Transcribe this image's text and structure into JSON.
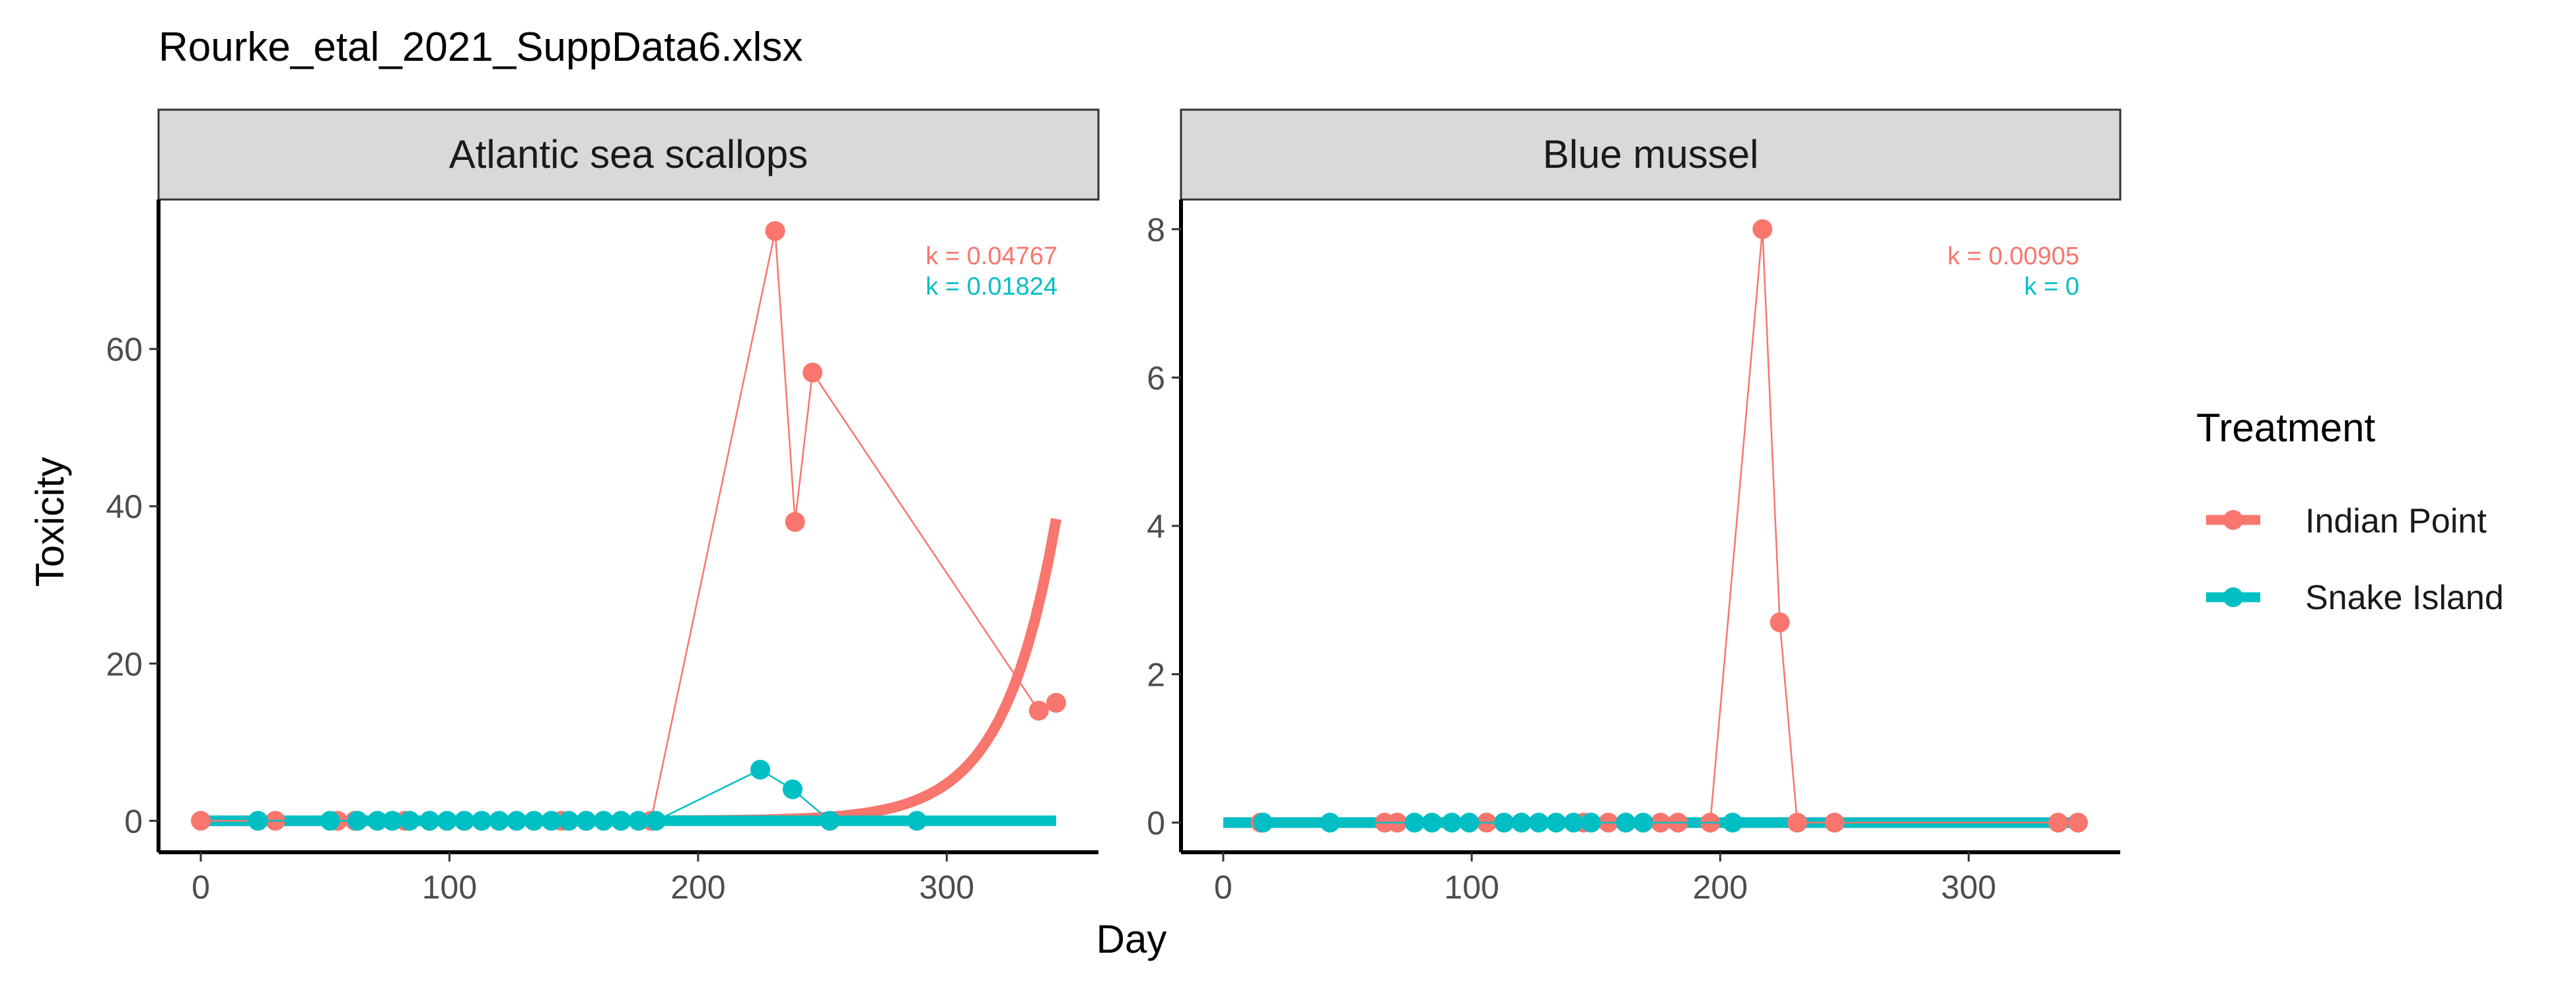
{
  "title": "Rourke_etal_2021_SuppData6.xlsx",
  "xlabel": "Day",
  "ylabel": "Toxicity",
  "legend": {
    "title": "Treatment",
    "placement": "right",
    "items": [
      {
        "label": "Indian Point",
        "color": "#F8766D"
      },
      {
        "label": "Snake Island",
        "color": "#00BFC4"
      }
    ]
  },
  "chart_data": [
    {
      "type": "scatter",
      "panel": "Atlantic sea scallops",
      "xlim": [
        -17,
        361
      ],
      "ylim": [
        -4,
        79
      ],
      "xticks": [
        0,
        100,
        200,
        300
      ],
      "yticks": [
        0,
        20,
        40,
        60
      ],
      "series": [
        {
          "name": "Indian Point",
          "color": "#F8766D",
          "k_label": "k = 0.04767",
          "k": 0.04767,
          "x": [
            0,
            30,
            55,
            62,
            82,
            106,
            145,
            155,
            181,
            231,
            239,
            246,
            337,
            344
          ],
          "y": [
            0,
            0,
            0,
            0,
            0,
            0,
            0,
            0,
            0,
            75,
            38,
            57,
            14,
            15
          ]
        },
        {
          "name": "Snake Island",
          "color": "#00BFC4",
          "k_label": "k = 0.01824",
          "k": 0.01824,
          "x": [
            23,
            52,
            63,
            71,
            77,
            84,
            92,
            99,
            106,
            113,
            120,
            127,
            134,
            141,
            148,
            155,
            162,
            169,
            176,
            183,
            225,
            238,
            253,
            288
          ],
          "y": [
            0,
            0,
            0,
            0,
            0,
            0,
            0,
            0,
            0,
            0,
            0,
            0,
            0,
            0,
            0,
            0,
            0,
            0,
            0,
            0,
            6.5,
            4,
            0,
            0
          ]
        }
      ],
      "fit_curves": [
        {
          "name": "Indian Point",
          "from": 0,
          "to": 344,
          "A": 2.9e-06,
          "rate": 0.04767
        },
        {
          "name": "Snake Island",
          "from": 0,
          "to": 344,
          "A": 0,
          "rate": 0.01824
        }
      ]
    },
    {
      "type": "scatter",
      "panel": "Blue mussel",
      "xlim": [
        -17,
        361
      ],
      "ylim": [
        -0.4,
        8.4
      ],
      "xticks": [
        0,
        100,
        200,
        300
      ],
      "yticks": [
        0,
        2,
        4,
        6,
        8
      ],
      "series": [
        {
          "name": "Indian Point",
          "color": "#F8766D",
          "k_label": "k = 0.00905",
          "k": 0.00905,
          "x": [
            15,
            65,
            70,
            106,
            145,
            155,
            176,
            183,
            196,
            217,
            224,
            231,
            246,
            336,
            344
          ],
          "y": [
            0,
            0,
            0,
            0,
            0,
            0,
            0,
            0,
            0,
            8,
            2.7,
            0,
            0,
            0,
            0
          ]
        },
        {
          "name": "Snake Island",
          "color": "#00BFC4",
          "k_label": "k = 0",
          "k": 0,
          "x": [
            16,
            43,
            77,
            84,
            92,
            99,
            113,
            120,
            127,
            134,
            141,
            148,
            162,
            169,
            205
          ],
          "y": [
            0,
            0,
            0,
            0,
            0,
            0,
            0,
            0,
            0,
            0,
            0,
            0,
            0,
            0,
            0
          ]
        }
      ],
      "fit_curves": [
        {
          "name": "Indian Point",
          "from": 0,
          "to": 344,
          "A": 0,
          "rate": 0.00905
        },
        {
          "name": "Snake Island",
          "from": 0,
          "to": 344,
          "A": 0,
          "rate": 0
        }
      ]
    }
  ]
}
